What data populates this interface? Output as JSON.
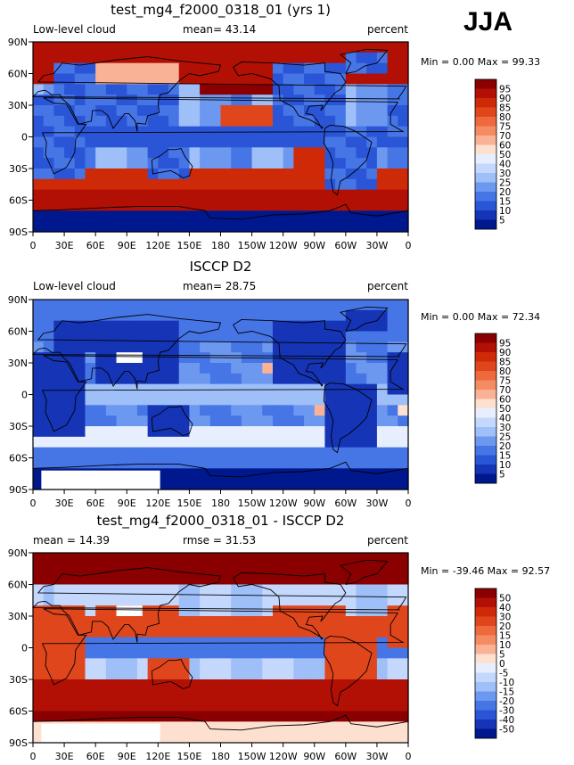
{
  "season": "JJA",
  "chart_data": [
    {
      "type": "heatmap",
      "title": "test_mg4_f2000_0318_01 (yrs 1)",
      "left_label": "Low-level cloud",
      "center_label": "mean=  43.14",
      "right_label": "percent",
      "stats": "Min =    0.00 Max =   99.33",
      "mean": 43.14,
      "min": 0.0,
      "max": 99.33,
      "colorbar_levels": [
        "95",
        "90",
        "85",
        "80",
        "75",
        "70",
        "60",
        "50",
        "40",
        "30",
        "25",
        "20",
        "15",
        "10",
        "5"
      ],
      "colors": [
        "#8a0000",
        "#b21005",
        "#cf2a08",
        "#e0461c",
        "#ee6a3c",
        "#f58b63",
        "#fab296",
        "#fde0d0",
        "#e7efff",
        "#c4d7fc",
        "#9ebff8",
        "#6d98f0",
        "#4675e6",
        "#2a55d6",
        "#1535b6",
        "#00188e"
      ],
      "xticks": [
        "0",
        "30E",
        "60E",
        "90E",
        "120E",
        "150E",
        "180",
        "150W",
        "120W",
        "90W",
        "60W",
        "30W",
        "0"
      ],
      "yticks": [
        "90N",
        "60N",
        "30N",
        "0",
        "30S",
        "60S",
        "90S"
      ],
      "xlim": [
        0,
        360
      ],
      "ylim": [
        -90,
        90
      ],
      "pattern": "model"
    },
    {
      "type": "heatmap",
      "title": "ISCCP D2",
      "left_label": "Low-level cloud",
      "center_label": "mean=  28.75",
      "right_label": "percent",
      "stats": "Min =    0.00 Max =   72.34",
      "mean": 28.75,
      "min": 0.0,
      "max": 72.34,
      "colorbar_levels": [
        "95",
        "90",
        "85",
        "80",
        "75",
        "70",
        "60",
        "50",
        "40",
        "30",
        "25",
        "20",
        "15",
        "10",
        "5"
      ],
      "colors": [
        "#8a0000",
        "#b21005",
        "#cf2a08",
        "#e0461c",
        "#ee6a3c",
        "#f58b63",
        "#fab296",
        "#fde0d0",
        "#e7efff",
        "#c4d7fc",
        "#9ebff8",
        "#6d98f0",
        "#4675e6",
        "#2a55d6",
        "#1535b6",
        "#00188e"
      ],
      "xticks": [
        "0",
        "30E",
        "60E",
        "90E",
        "120E",
        "150E",
        "180",
        "150W",
        "120W",
        "90W",
        "60W",
        "30W",
        "0"
      ],
      "yticks": [
        "90N",
        "60N",
        "30N",
        "0",
        "30S",
        "60S",
        "90S"
      ],
      "xlim": [
        0,
        360
      ],
      "ylim": [
        -90,
        90
      ],
      "pattern": "obs"
    },
    {
      "type": "heatmap",
      "title": "test_mg4_f2000_0318_01 - ISCCP D2",
      "left_label": "mean =  14.39",
      "center_label": "rmse =  31.53",
      "right_label": "percent",
      "stats": "Min =  -39.46 Max =   92.57",
      "mean": 14.39,
      "rmse": 31.53,
      "min": -39.46,
      "max": 92.57,
      "colorbar_levels": [
        "50",
        "40",
        "30",
        "20",
        "15",
        "10",
        "5",
        "0",
        "-5",
        "-10",
        "-15",
        "-20",
        "-30",
        "-40",
        "-50"
      ],
      "colors": [
        "#8a0000",
        "#b21005",
        "#cf2a08",
        "#e0461c",
        "#ee6a3c",
        "#f58b63",
        "#fab296",
        "#fde0d0",
        "#e7efff",
        "#c4d7fc",
        "#9ebff8",
        "#6d98f0",
        "#4675e6",
        "#2a55d6",
        "#1535b6",
        "#00188e"
      ],
      "xticks": [
        "0",
        "30E",
        "60E",
        "90E",
        "120E",
        "150E",
        "180",
        "150W",
        "120W",
        "90W",
        "60W",
        "30W",
        "0"
      ],
      "yticks": [
        "90N",
        "60N",
        "30N",
        "0",
        "30S",
        "60S",
        "90S"
      ],
      "xlim": [
        0,
        360
      ],
      "ylim": [
        -90,
        90
      ],
      "pattern": "diff"
    }
  ]
}
